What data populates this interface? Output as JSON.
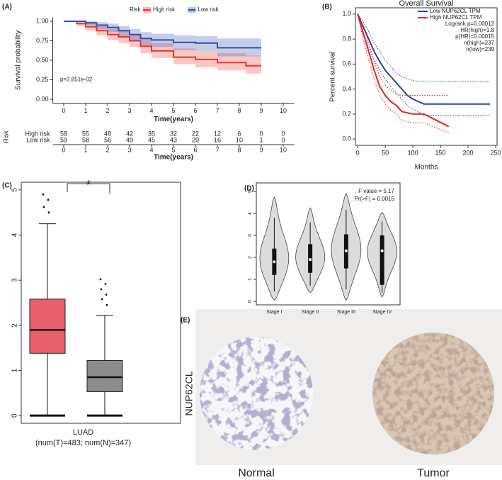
{
  "chart_data": [
    {
      "type": "line",
      "label": "(A)",
      "legend_title": "Risk",
      "legend_position": "top",
      "ylabel": "Survival probability",
      "xlabel": "Time(years)",
      "annotation": "p=2.851e-02",
      "ci_style": "band",
      "xlim": [
        -0.5,
        10.5
      ],
      "xticks": [
        0,
        1,
        2,
        3,
        4,
        5,
        6,
        7,
        8,
        9,
        10
      ],
      "ylim": [
        -0.05,
        1.05
      ],
      "yticks": [
        {
          "value": 0,
          "label": "0.00"
        },
        0.25,
        {
          "value": 0.5,
          "label": "0.50"
        },
        0.75,
        {
          "value": 1,
          "label": "1.00"
        }
      ],
      "series": [
        {
          "name": "High risk",
          "color": "#e8352b",
          "x": [
            0,
            0.6,
            0.6,
            1,
            1,
            1.5,
            1.5,
            2,
            2,
            2.5,
            2.5,
            3,
            3,
            3.5,
            3.5,
            4,
            4,
            5,
            5,
            6,
            6,
            7,
            7,
            8.3,
            8.3,
            9
          ],
          "values": [
            1,
            1,
            0.97,
            0.97,
            0.93,
            0.93,
            0.88,
            0.88,
            0.83,
            0.83,
            0.8,
            0.8,
            0.75,
            0.75,
            0.68,
            0.68,
            0.62,
            0.62,
            0.54,
            0.54,
            0.51,
            0.51,
            0.47,
            0.47,
            0.43,
            0.43
          ],
          "upper": [
            1,
            1,
            1,
            1,
            0.98,
            0.98,
            0.94,
            0.94,
            0.9,
            0.9,
            0.88,
            0.88,
            0.83,
            0.83,
            0.77,
            0.77,
            0.72,
            0.72,
            0.65,
            0.65,
            0.62,
            0.62,
            0.59,
            0.59,
            0.56,
            0.56
          ],
          "lower": [
            1,
            1,
            0.94,
            0.94,
            0.88,
            0.88,
            0.82,
            0.82,
            0.76,
            0.76,
            0.72,
            0.72,
            0.67,
            0.67,
            0.59,
            0.59,
            0.53,
            0.53,
            0.45,
            0.45,
            0.41,
            0.41,
            0.37,
            0.37,
            0.33,
            0.33
          ]
        },
        {
          "name": "Low risk",
          "color": "#2f4fb0",
          "x": [
            0,
            1,
            1,
            1.5,
            1.5,
            2,
            2,
            2.5,
            2.5,
            3,
            3,
            3.5,
            3.5,
            4,
            4,
            5,
            5,
            6,
            6,
            7,
            7,
            9
          ],
          "values": [
            1,
            1,
            0.98,
            0.98,
            0.95,
            0.95,
            0.92,
            0.92,
            0.88,
            0.88,
            0.83,
            0.83,
            0.78,
            0.78,
            0.76,
            0.76,
            0.73,
            0.73,
            0.72,
            0.72,
            0.66,
            0.66
          ],
          "upper": [
            1,
            1,
            1,
            1,
            0.99,
            0.99,
            0.97,
            0.97,
            0.94,
            0.94,
            0.9,
            0.9,
            0.86,
            0.86,
            0.84,
            0.84,
            0.82,
            0.82,
            0.81,
            0.81,
            0.78,
            0.78
          ],
          "lower": [
            1,
            1,
            0.95,
            0.95,
            0.9,
            0.9,
            0.86,
            0.86,
            0.81,
            0.81,
            0.75,
            0.75,
            0.69,
            0.69,
            0.67,
            0.67,
            0.63,
            0.63,
            0.62,
            0.62,
            0.55,
            0.55
          ]
        }
      ],
      "risk_table": {
        "title": "Risk",
        "xlabel": "Time(years)",
        "x": [
          0,
          1,
          2,
          3,
          4,
          5,
          6,
          7,
          8,
          9,
          10
        ],
        "rows": [
          {
            "name": "High risk",
            "color": "#e8352b",
            "values": [
              58,
              55,
              48,
              42,
              35,
              32,
              22,
              12,
              6,
              0,
              0
            ]
          },
          {
            "name": "Low risk",
            "color": "#2f4fb0",
            "values": [
              59,
              58,
              56,
              49,
              45,
              43,
              29,
              16,
              10,
              1,
              0
            ]
          }
        ]
      }
    },
    {
      "type": "line",
      "label": "(B)",
      "title": "Overall Survival",
      "legend_position": "upper right",
      "ylabel": "Percent survival",
      "xlabel": "Months",
      "ci_style": "dotted",
      "frame": true,
      "annotations": [
        "Logrank p=0.00012",
        "HR(high)=1.8",
        "p(HR)=0.00015",
        "n(high)=237",
        "n(low)=239"
      ],
      "xlim": [
        -4,
        252.5
      ],
      "xticks": [
        0,
        50,
        100,
        150,
        200,
        250
      ],
      "ylim": [
        -0.05,
        1.05
      ],
      "yticks": [
        {
          "value": 0,
          "label": "0.0"
        },
        0.2,
        0.4,
        0.6,
        0.8,
        {
          "value": 1,
          "label": "1.0"
        }
      ],
      "series": [
        {
          "name": "Low NUP62CL TPM",
          "color": "#2a3fa8",
          "x": [
            0,
            10,
            20,
            30,
            40,
            50,
            60,
            70,
            80,
            90,
            100,
            110,
            120,
            240
          ],
          "values": [
            1,
            0.9,
            0.8,
            0.7,
            0.62,
            0.55,
            0.5,
            0.45,
            0.4,
            0.35,
            0.32,
            0.3,
            0.28,
            0.28
          ],
          "upper": [
            1,
            0.94,
            0.86,
            0.77,
            0.7,
            0.63,
            0.58,
            0.53,
            0.5,
            0.48,
            0.47,
            0.46,
            0.46,
            0.46
          ],
          "lower": [
            1,
            0.85,
            0.74,
            0.63,
            0.55,
            0.48,
            0.42,
            0.37,
            0.32,
            0.27,
            0.24,
            0.22,
            0.19,
            0.19
          ]
        },
        {
          "name": "High NUP62CL TPM",
          "color": "#e32418",
          "x": [
            0,
            10,
            20,
            30,
            40,
            50,
            60,
            70,
            80,
            100,
            120,
            165
          ],
          "values": [
            1,
            0.85,
            0.7,
            0.55,
            0.42,
            0.35,
            0.3,
            0.27,
            0.22,
            0.2,
            0.2,
            0.1
          ],
          "upper": [
            1,
            0.9,
            0.77,
            0.62,
            0.5,
            0.43,
            0.39,
            0.36,
            0.35,
            0.35,
            0.35,
            0.35
          ],
          "lower": [
            1,
            0.8,
            0.63,
            0.48,
            0.35,
            0.28,
            0.23,
            0.2,
            0.15,
            0.13,
            0.13,
            0.05
          ]
        }
      ]
    },
    {
      "type": "box",
      "label": "(C)",
      "categories": [
        "LUAD"
      ],
      "xlabel": "(num(T)=483; num(N)=347)",
      "annotation": "*",
      "ylim": [
        -0.17,
        5.17
      ],
      "yticks": [
        0,
        1,
        2,
        3,
        4,
        5
      ],
      "boxes": [
        {
          "color": "#e8606a",
          "whisker_low": 0,
          "q1": 1.38,
          "median": 1.9,
          "q3": 2.58,
          "whisker_high": 4.25,
          "outliers": [
            4.9,
            4.78,
            4.62,
            4.5
          ]
        },
        {
          "color": "#8c8c8c",
          "whisker_low": 0,
          "q1": 0.53,
          "median": 0.85,
          "q3": 1.22,
          "whisker_high": 2.22,
          "outliers": [
            3.02,
            2.92,
            2.8,
            2.68,
            2.58,
            2.45
          ]
        }
      ]
    },
    {
      "type": "violin",
      "label": "(D)",
      "annotations": [
        "F value = 5.17",
        "Pr(>F) = 0.0016"
      ],
      "categories": [
        "Stage I",
        "Stage II",
        "Stage III",
        "Stage IV"
      ],
      "ylim": [
        -0.16,
        5.39
      ],
      "yticks": [
        0,
        1,
        2,
        3,
        4,
        5
      ],
      "violins": [
        {
          "min": 0.05,
          "q1": 1.2,
          "median": 1.8,
          "q3": 2.4,
          "max": 4.75
        },
        {
          "min": 0.4,
          "q1": 1.3,
          "median": 1.9,
          "q3": 2.6,
          "max": 4.25
        },
        {
          "min": 0.05,
          "q1": 1.5,
          "median": 2.3,
          "q3": 3.05,
          "max": 4.9
        },
        {
          "min": 0.2,
          "q1": 0.75,
          "median": 2.3,
          "q3": 3.0,
          "max": 4.05
        }
      ]
    }
  ],
  "panel_e": {
    "label": "(E)",
    "ylabel": "NUP62CL",
    "captions": [
      "Normal",
      "Tumor"
    ]
  }
}
